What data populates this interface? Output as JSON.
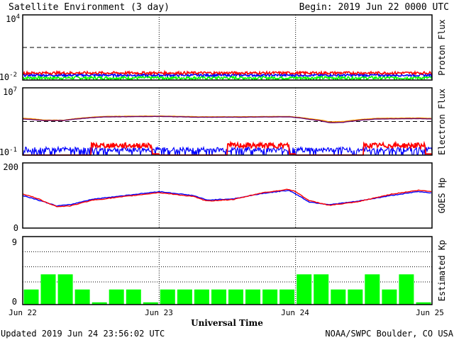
{
  "header": {
    "title": "Satellite Environment (3 day)",
    "begin": "Begin:  2019 Jun 22 0000 UTC"
  },
  "footer": {
    "updated": "Updated 2019 Jun 24 23:56:02 UTC",
    "credit": "NOAA/SWPC Boulder, CO USA"
  },
  "colors": {
    "red": "#ff0000",
    "blue": "#0000ff",
    "green": "#00ff00",
    "orange": "#ff9900",
    "purple": "#660066"
  },
  "chart_data": [
    {
      "type": "line",
      "ylabel": "Proton Flux",
      "yscale": "log",
      "ylim": [
        0.01,
        10000
      ],
      "ytick_labels": [
        {
          "base": "10",
          "exp": "4"
        },
        {
          "base": "10",
          "exp": "-2"
        }
      ],
      "threshold": 10,
      "x_days": [
        0,
        3
      ],
      "series": [
        {
          "color": "#ff0000",
          "level": 0.045,
          "noise": 0.12
        },
        {
          "color": "#0000ff",
          "level": 0.028,
          "noise": 0.1
        },
        {
          "color": "#00ff00",
          "level": 0.016,
          "noise": 0.14
        }
      ]
    },
    {
      "type": "line",
      "ylabel": "Electron Flux",
      "yscale": "log",
      "ylim": [
        0.1,
        10000000
      ],
      "ytick_labels": [
        {
          "base": "10",
          "exp": "7"
        },
        {
          "base": "10",
          "exp": "-1"
        }
      ],
      "threshold": 1000,
      "x": [
        0,
        0.15,
        0.3,
        0.6,
        1.0,
        1.3,
        1.6,
        1.95,
        2.1,
        2.25,
        2.35,
        2.6,
        2.9,
        3.0
      ],
      "series": [
        {
          "color": "#ff9900",
          "values": [
            2500,
            1500,
            1400,
            4000,
            4500,
            3600,
            3700,
            4000,
            2200,
            900,
            1000,
            2400,
            2600,
            2300
          ]
        },
        {
          "color": "#660066",
          "values": [
            2000,
            1300,
            1300,
            3500,
            4000,
            3200,
            3300,
            3600,
            1800,
            700,
            800,
            2000,
            2200,
            2000
          ]
        }
      ],
      "low_energy_series": [
        {
          "color": "#0000ff",
          "level": 0.45
        },
        {
          "color": "#ff0000",
          "level": 1.4
        }
      ]
    },
    {
      "type": "line",
      "ylabel": "GOES Hp",
      "ylim": [
        0,
        200
      ],
      "ytick_labels": [
        "200",
        "0"
      ],
      "x": [
        0,
        0.1,
        0.25,
        0.35,
        0.5,
        0.75,
        1.0,
        1.25,
        1.35,
        1.55,
        1.75,
        1.95,
        2.0,
        2.1,
        2.25,
        2.45,
        2.7,
        2.9,
        3.0
      ],
      "series": [
        {
          "color": "#0000ff",
          "values": [
            100,
            88,
            68,
            72,
            88,
            100,
            112,
            100,
            86,
            90,
            106,
            116,
            105,
            80,
            72,
            82,
            100,
            112,
            108
          ]
        },
        {
          "color": "#ff0000",
          "values": [
            105,
            92,
            66,
            68,
            85,
            97,
            109,
            97,
            83,
            88,
            108,
            119,
            112,
            84,
            70,
            80,
            104,
            116,
            112
          ]
        }
      ]
    },
    {
      "type": "bar",
      "ylabel": "Estimated Kp",
      "ylim": [
        0,
        9
      ],
      "ytick_labels": [
        "9",
        "0"
      ],
      "bar_color": "#00ff00",
      "values": [
        2,
        4,
        4,
        2,
        0.3,
        2,
        2,
        0.3,
        2,
        2,
        2,
        2,
        2,
        2,
        2,
        2,
        4,
        4,
        2,
        2,
        4,
        2,
        4,
        0.3
      ],
      "x_ticks": [
        "Jun 22",
        "Jun 23",
        "Jun 24",
        "Jun 25"
      ],
      "xlabel": "Universal Time"
    }
  ]
}
